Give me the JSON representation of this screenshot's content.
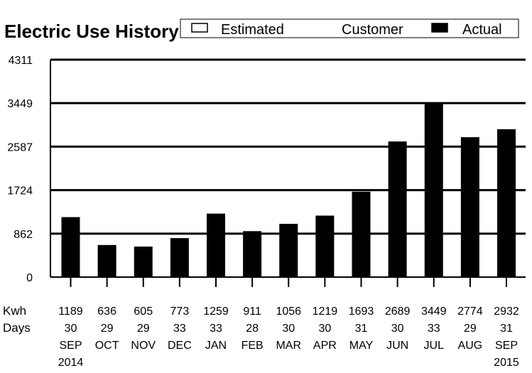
{
  "chart_data": {
    "type": "bar",
    "title": "Electric Use History",
    "legend": {
      "placement": "top-right",
      "entries": [
        {
          "label": "Estimated",
          "swatch": "#ffffff"
        },
        {
          "label": "Customer",
          "swatch": null
        },
        {
          "label": "Actual",
          "swatch": "#000000"
        }
      ]
    },
    "yticks": [
      "0",
      "862",
      "1724",
      "2587",
      "3449",
      "4311"
    ],
    "ylim": [
      0,
      4311
    ],
    "grid": true,
    "bar_color": "#000000",
    "row_labels": [
      "Kwh",
      "Days"
    ],
    "categories": [
      {
        "kwh": 1189,
        "kwh_label": "1189",
        "days": "30",
        "month": "SEP",
        "year": "2014"
      },
      {
        "kwh": 636,
        "kwh_label": "636",
        "days": "29",
        "month": "OCT",
        "year": ""
      },
      {
        "kwh": 605,
        "kwh_label": "605",
        "days": "29",
        "month": "NOV",
        "year": ""
      },
      {
        "kwh": 773,
        "kwh_label": "773",
        "days": "33",
        "month": "DEC",
        "year": ""
      },
      {
        "kwh": 1259,
        "kwh_label": "1259",
        "days": "33",
        "month": "JAN",
        "year": ""
      },
      {
        "kwh": 911,
        "kwh_label": "911",
        "days": "28",
        "month": "FEB",
        "year": ""
      },
      {
        "kwh": 1056,
        "kwh_label": "1056",
        "days": "30",
        "month": "MAR",
        "year": ""
      },
      {
        "kwh": 1219,
        "kwh_label": "1219",
        "days": "30",
        "month": "APR",
        "year": ""
      },
      {
        "kwh": 1693,
        "kwh_label": "1693",
        "days": "31",
        "month": "MAY",
        "year": ""
      },
      {
        "kwh": 2689,
        "kwh_label": "2689",
        "days": "30",
        "month": "JUN",
        "year": ""
      },
      {
        "kwh": 3449,
        "kwh_label": "3449",
        "days": "33",
        "month": "JUL",
        "year": ""
      },
      {
        "kwh": 2774,
        "kwh_label": "2774",
        "days": "29",
        "month": "AUG",
        "year": ""
      },
      {
        "kwh": 2932,
        "kwh_label": "2932",
        "days": "31",
        "month": "SEP",
        "year": "2015"
      }
    ]
  }
}
